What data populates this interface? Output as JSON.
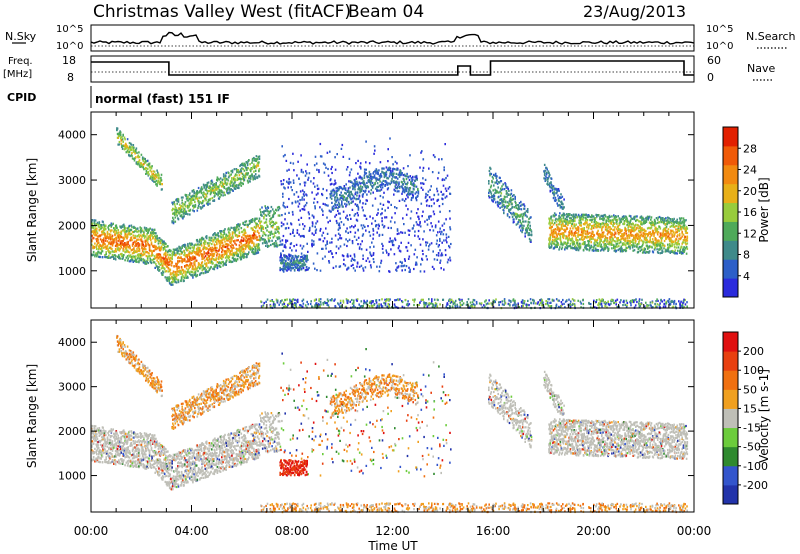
{
  "header": {
    "title": "Christmas Valley West (fitACF)",
    "beam": "Beam 04",
    "date": "23/Aug/2013"
  },
  "strips": {
    "nsky": {
      "label": "N.Sky",
      "tick_top": "10^5",
      "tick_bottom": "10^0"
    },
    "nsearch": {
      "label": "N.Search",
      "tick_top": "10^5",
      "tick_bottom": "10^0"
    },
    "freq": {
      "label": "Freq.",
      "unit": "[MHz]",
      "tick_top": "18",
      "tick_bottom": "8"
    },
    "nave": {
      "label": "Nave",
      "tick_top": "60",
      "tick_bottom": "0"
    },
    "cpid": {
      "label": "CPID",
      "value": "normal (fast) 151 IF"
    }
  },
  "colors": {
    "power_scale": [
      "#2b2bdc",
      "#2d5fc8",
      "#3f8a8a",
      "#4faa5a",
      "#98cc3c",
      "#e8b018",
      "#f28a10",
      "#f05a08",
      "#e22000"
    ],
    "velocity_scale": [
      "#2233aa",
      "#3355cc",
      "#2f8a2f",
      "#6ccc3c",
      "#bfbfb7",
      "#f0a020",
      "#f07010",
      "#e84010",
      "#e01010"
    ]
  },
  "chart_data": [
    {
      "type": "heatmap",
      "name": "power",
      "xlabel": "",
      "ylabel": "Slant Range [km]",
      "ylim": [
        180,
        4500
      ],
      "yticks": [
        1000,
        2000,
        3000,
        4000
      ],
      "xticks": [
        "00:00",
        "04:00",
        "08:00",
        "12:00",
        "16:00",
        "20:00",
        "00:00"
      ],
      "colorbar": {
        "label": "Power [dB]",
        "range": [
          0,
          32
        ],
        "ticks": [
          4,
          8,
          12,
          16,
          20,
          24,
          28
        ]
      }
    },
    {
      "type": "heatmap",
      "name": "velocity",
      "xlabel": "Time UT",
      "ylabel": "Slant Range [km]",
      "ylim": [
        180,
        4500
      ],
      "yticks": [
        1000,
        2000,
        3000,
        4000
      ],
      "xticks": [
        "00:00",
        "04:00",
        "08:00",
        "12:00",
        "16:00",
        "20:00",
        "00:00"
      ],
      "colorbar": {
        "label": "Velocity [m s-1]",
        "ticks": [
          "200",
          "100",
          "50",
          "15",
          "-15",
          "-50",
          "-100",
          "-200"
        ]
      }
    }
  ]
}
